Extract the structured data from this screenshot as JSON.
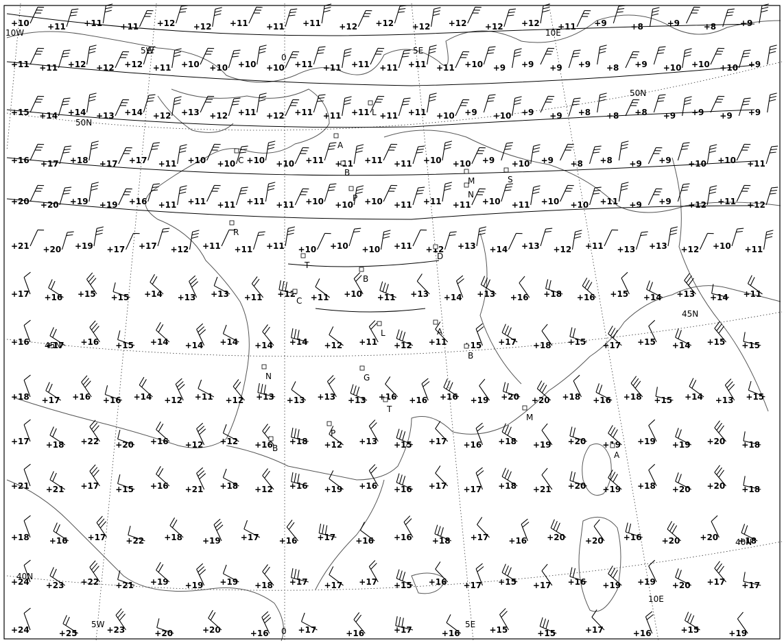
{
  "grid_labels": {
    "longitudes": [
      "10W",
      "5W",
      "0",
      "5E",
      "10E"
    ],
    "latitudes": [
      "50N",
      "45N",
      "40N"
    ]
  },
  "stations": [
    "L",
    "A",
    "C",
    "B",
    "P",
    "M",
    "N",
    "S",
    "R",
    "T",
    "D",
    "B",
    "C",
    "L",
    "A",
    "G",
    "B",
    "N",
    "M",
    "T",
    "P",
    "B",
    "A"
  ],
  "rows": [
    {
      "y": 40,
      "values": [
        "+10",
        "+11",
        "+11",
        "+11",
        "+12",
        "+12",
        "+11",
        "+11",
        "+11",
        "+12",
        "+12",
        "+12",
        "+12",
        "+12",
        "+12",
        "+11",
        "+9",
        "+8",
        "+9",
        "+8",
        "+9"
      ]
    },
    {
      "y": 100,
      "values": [
        "+11",
        "+11",
        "+12",
        "+12",
        "+12",
        "+11",
        "+10",
        "+10",
        "+10",
        "+10",
        "+11",
        "+11",
        "+11",
        "+11",
        "+11",
        "+11",
        "+10",
        "+9",
        "+9",
        "+9",
        "+9",
        "+8",
        "+9",
        "+10",
        "+10",
        "+10",
        "+9"
      ]
    },
    {
      "y": 170,
      "values": [
        "+15",
        "+14",
        "+14",
        "+13",
        "+14",
        "+12",
        "+13",
        "+12",
        "+11",
        "+12",
        "+11",
        "+11",
        "+11",
        "+11",
        "+11",
        "+10",
        "+9",
        "+10",
        "+9",
        "+9",
        "+8",
        "+8",
        "+8",
        "+9",
        "+9",
        "+9",
        "+9"
      ]
    },
    {
      "y": 240,
      "values": [
        "+16",
        "+17",
        "+18",
        "+17",
        "+17",
        "+11",
        "+10",
        "+10",
        "+10",
        "+10",
        "+11",
        "+11",
        "+11",
        "+11",
        "+10",
        "+10",
        "+9",
        "+10",
        "+9",
        "+8",
        "+8",
        "+9",
        "+9",
        "+10",
        "+10",
        "+11"
      ]
    },
    {
      "y": 300,
      "values": [
        "+20",
        "+20",
        "+19",
        "+19",
        "+16",
        "+11",
        "+11",
        "+11",
        "+11",
        "+11",
        "+10",
        "+10",
        "+10",
        "+11",
        "+11",
        "+11",
        "+10",
        "+11",
        "+10",
        "+10",
        "+11",
        "+9",
        "+9",
        "+12",
        "+11",
        "+12"
      ]
    },
    {
      "y": 365,
      "values": [
        "+21",
        "+20",
        "+19",
        "+17",
        "+17",
        "+12",
        "+11",
        "+11",
        "+11",
        "+10",
        "+10",
        "+10",
        "+11",
        "+12",
        "+13",
        "+14",
        "+13",
        "+12",
        "+11",
        "+13",
        "+13",
        "+12",
        "+10",
        "+11"
      ]
    },
    {
      "y": 435,
      "values": [
        "+17",
        "+16",
        "+15",
        "+15",
        "+14",
        "+13",
        "+13",
        "+11",
        "+12",
        "+11",
        "+10",
        "+11",
        "+13",
        "+14",
        "+13",
        "+16",
        "+18",
        "+16",
        "+15",
        "+14",
        "+13",
        "+14",
        "+11"
      ]
    },
    {
      "y": 505,
      "values": [
        "+16",
        "+17",
        "+16",
        "+15",
        "+14",
        "+14",
        "+14",
        "+14",
        "+14",
        "+12",
        "+11",
        "+12",
        "+11",
        "+15",
        "+17",
        "+18",
        "+15",
        "+17",
        "+15",
        "+14",
        "+15",
        "+15"
      ]
    },
    {
      "y": 585,
      "values": [
        "+18",
        "+17",
        "+16",
        "+16",
        "+14",
        "+12",
        "+11",
        "+12",
        "+13",
        "+13",
        "+13",
        "+13",
        "+16",
        "+16",
        "+16",
        "+19",
        "+20",
        "+20",
        "+18",
        "+16",
        "+18",
        "+15",
        "+14",
        "+13",
        "+15"
      ]
    },
    {
      "y": 650,
      "values": [
        "+17",
        "+18",
        "+22",
        "+20",
        "+16",
        "+12",
        "+12",
        "+16",
        "+18",
        "+12",
        "+13",
        "+15",
        "+17",
        "+16",
        "+18",
        "+19",
        "+20",
        "+19",
        "+19",
        "+19",
        "+20",
        "+18"
      ]
    },
    {
      "y": 715,
      "values": [
        "+21",
        "+21",
        "+17",
        "+15",
        "+16",
        "+21",
        "+18",
        "+12",
        "+16",
        "+19",
        "+16",
        "+16",
        "+17",
        "+17",
        "+18",
        "+21",
        "+20",
        "+19",
        "+18",
        "+20",
        "+20",
        "+18"
      ]
    },
    {
      "y": 790,
      "values": [
        "+18",
        "+16",
        "+17",
        "+22",
        "+18",
        "+19",
        "+17",
        "+16",
        "+17",
        "+16",
        "+16",
        "+18",
        "+17",
        "+16",
        "+20",
        "+20",
        "+16",
        "+20",
        "+20",
        "+18"
      ]
    },
    {
      "y": 855,
      "values": [
        "+24",
        "+23",
        "+22",
        "+21",
        "+19",
        "+19",
        "+19",
        "+18",
        "+17",
        "+17",
        "+17",
        "+15",
        "+16",
        "+17",
        "+15",
        "+17",
        "+16",
        "+19",
        "+19",
        "+20",
        "+17",
        "+17"
      ]
    },
    {
      "y": 925,
      "values": [
        "+24",
        "+25",
        "+23",
        "+20",
        "+20",
        "+16",
        "+17",
        "+16",
        "+17",
        "+16",
        "+15",
        "+15",
        "+17",
        "+16",
        "+15",
        "+19"
      ]
    }
  ]
}
